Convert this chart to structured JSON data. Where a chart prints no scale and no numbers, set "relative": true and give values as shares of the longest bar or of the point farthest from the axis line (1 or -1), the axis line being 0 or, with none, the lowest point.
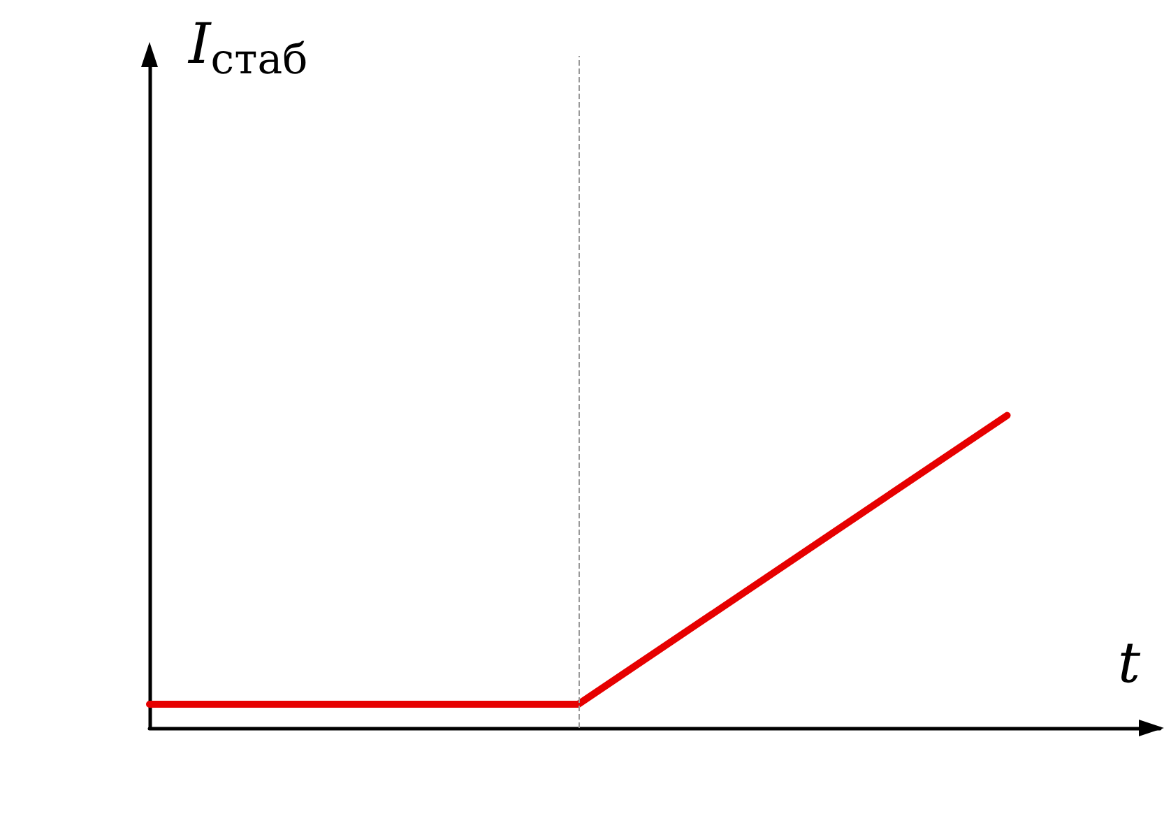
{
  "chart_data": {
    "type": "line",
    "relative": true,
    "xlabel": "t",
    "annotations": [
      "I$_{стаб}$"
    ],
    "categories": [
      null,
      null,
      null
    ],
    "series": [
      {
        "color": "#e60000",
        "values": [
          0.076,
          0.076,
          1
        ]
      }
    ],
    "marker": "none"
  }
}
